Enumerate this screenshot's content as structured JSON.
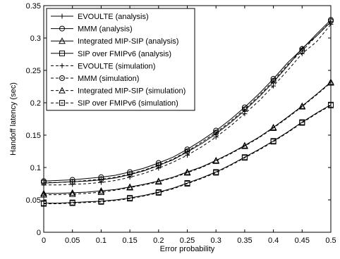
{
  "chart_data": {
    "type": "line",
    "title": "",
    "xlabel": "Error probability",
    "ylabel": "Handoff latency (sec)",
    "xlim": [
      0,
      0.5
    ],
    "ylim": [
      0,
      0.35
    ],
    "grid": false,
    "legend_position": "top-left",
    "x": [
      0,
      0.025,
      0.05,
      0.075,
      0.1,
      0.125,
      0.15,
      0.175,
      0.2,
      0.225,
      0.25,
      0.275,
      0.3,
      0.325,
      0.35,
      0.375,
      0.4,
      0.425,
      0.45,
      0.475,
      0.5
    ],
    "x_ticks": [
      "0",
      "0.05",
      "0.1",
      "0.15",
      "0.2",
      "0.25",
      "0.3",
      "0.35",
      "0.4",
      "0.45",
      "0.5"
    ],
    "y_ticks": [
      "0",
      "0.05",
      "0.1",
      "0.15",
      "0.2",
      "0.25",
      "0.3",
      "0.35"
    ],
    "series": [
      {
        "name": "EVOULTE (analysis)",
        "marker": "plus",
        "style": "solid",
        "values": [
          0.076,
          0.077,
          0.078,
          0.079,
          0.081,
          0.084,
          0.089,
          0.095,
          0.103,
          0.112,
          0.124,
          0.137,
          0.152,
          0.169,
          0.188,
          0.209,
          0.232,
          0.257,
          0.284,
          0.303,
          0.325
        ]
      },
      {
        "name": "MMM (analysis)",
        "marker": "circle",
        "style": "solid",
        "values": [
          0.079,
          0.08,
          0.081,
          0.083,
          0.085,
          0.088,
          0.093,
          0.099,
          0.107,
          0.116,
          0.128,
          0.142,
          0.157,
          0.174,
          0.193,
          0.214,
          0.237,
          0.262,
          0.283,
          0.306,
          0.328
        ]
      },
      {
        "name": "Integrated MIP-SIP (analysis)",
        "marker": "triangle",
        "style": "solid",
        "values": [
          0.06,
          0.06,
          0.061,
          0.062,
          0.064,
          0.066,
          0.07,
          0.074,
          0.079,
          0.085,
          0.093,
          0.101,
          0.111,
          0.122,
          0.134,
          0.147,
          0.162,
          0.178,
          0.195,
          0.213,
          0.232
        ]
      },
      {
        "name": "SIP over FMIPv6 (analysis)",
        "marker": "square",
        "style": "solid",
        "values": [
          0.045,
          0.045,
          0.046,
          0.047,
          0.048,
          0.05,
          0.053,
          0.057,
          0.062,
          0.068,
          0.076,
          0.084,
          0.093,
          0.104,
          0.116,
          0.128,
          0.141,
          0.155,
          0.17,
          0.184,
          0.197
        ]
      },
      {
        "name": "EVOULTE (simulation)",
        "marker": "plus",
        "style": "dashed",
        "values": [
          0.073,
          0.073,
          0.074,
          0.075,
          0.077,
          0.08,
          0.085,
          0.091,
          0.099,
          0.108,
          0.119,
          0.132,
          0.147,
          0.164,
          0.183,
          0.203,
          0.226,
          0.25,
          0.276,
          0.294,
          0.321
        ]
      },
      {
        "name": "MMM (simulation)",
        "marker": "circle",
        "style": "dashed",
        "values": [
          0.077,
          0.077,
          0.078,
          0.08,
          0.082,
          0.085,
          0.09,
          0.096,
          0.104,
          0.113,
          0.125,
          0.139,
          0.154,
          0.171,
          0.19,
          0.211,
          0.234,
          0.259,
          0.28,
          0.303,
          0.326
        ]
      },
      {
        "name": "Integrated MIP-SIP (simulation)",
        "marker": "triangle",
        "style": "dashed",
        "values": [
          0.058,
          0.058,
          0.059,
          0.06,
          0.062,
          0.065,
          0.069,
          0.073,
          0.078,
          0.084,
          0.092,
          0.1,
          0.11,
          0.121,
          0.133,
          0.146,
          0.161,
          0.177,
          0.194,
          0.212,
          0.231
        ]
      },
      {
        "name": "SIP over FMIPv6 (simulation)",
        "marker": "square",
        "style": "dashed",
        "values": [
          0.044,
          0.044,
          0.045,
          0.046,
          0.047,
          0.049,
          0.052,
          0.056,
          0.061,
          0.067,
          0.075,
          0.083,
          0.092,
          0.103,
          0.115,
          0.127,
          0.14,
          0.154,
          0.169,
          0.183,
          0.196
        ]
      }
    ]
  }
}
